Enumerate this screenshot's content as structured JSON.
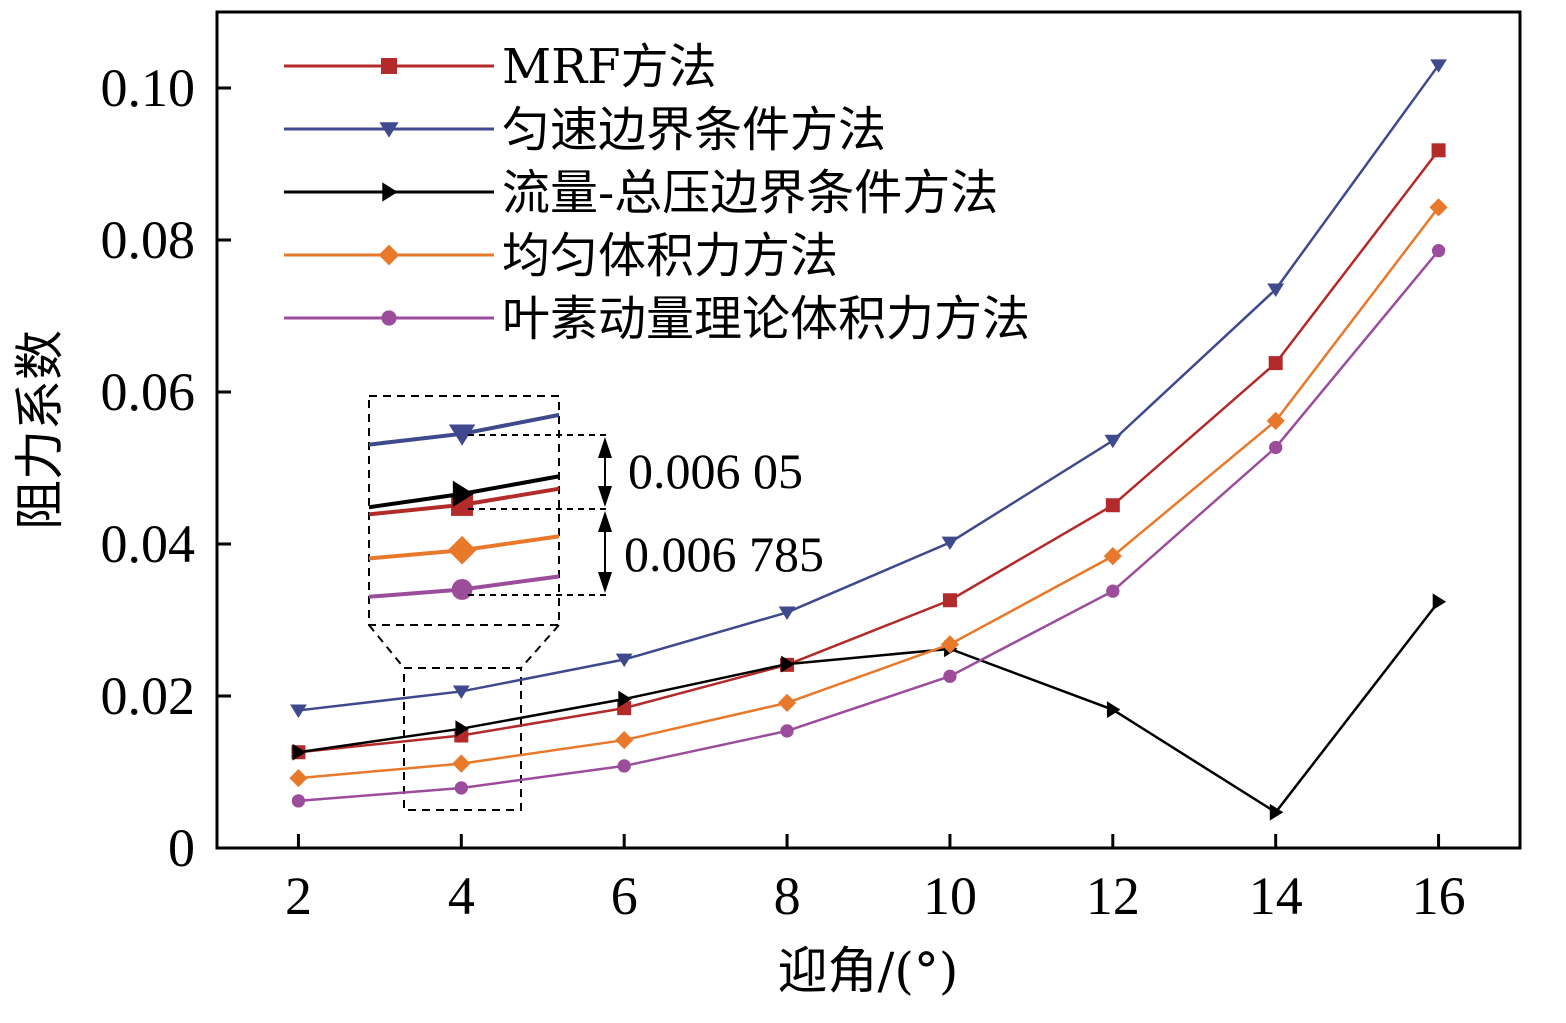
{
  "chart_data": {
    "type": "line",
    "title": "",
    "xlabel": "迎角/(°)",
    "ylabel": "阻力系数",
    "x": [
      2,
      4,
      6,
      8,
      10,
      12,
      14,
      16
    ],
    "xlim": [
      1,
      17
    ],
    "ylim": [
      0,
      0.11
    ],
    "xticks": [
      "2",
      "4",
      "6",
      "8",
      "10",
      "12",
      "14",
      "16"
    ],
    "yticks": [
      {
        "value": 0,
        "label": "0"
      },
      {
        "value": 0.02,
        "label": "0.02"
      },
      {
        "value": 0.04,
        "label": "0.04"
      },
      {
        "value": 0.06,
        "label": "0.06"
      },
      {
        "value": 0.08,
        "label": "0.08"
      },
      {
        "value": 0.1,
        "label": "0.10"
      }
    ],
    "grid": false,
    "legend_position": "top-left",
    "series": [
      {
        "name": "MRF方法",
        "color": "#b22a2a",
        "marker": "square",
        "values": [
          0.0126,
          0.0148,
          0.0184,
          0.0241,
          0.0326,
          0.0451,
          0.0638,
          0.0918
        ]
      },
      {
        "name": "匀速边界条件方法",
        "color": "#3f4a8e",
        "marker": "triangle-down",
        "values": [
          0.0181,
          0.0206,
          0.0248,
          0.031,
          0.0402,
          0.0536,
          0.0735,
          0.103
        ]
      },
      {
        "name": "流量-总压边界条件方法",
        "color": "#000000",
        "marker": "triangle-right",
        "values": [
          0.0126,
          0.0157,
          0.0196,
          0.0242,
          0.0262,
          0.0182,
          0.0047,
          0.0324
        ]
      },
      {
        "name": "均匀体积力方法",
        "color": "#e8782a",
        "marker": "diamond",
        "values": [
          0.0092,
          0.0111,
          0.0142,
          0.0191,
          0.0268,
          0.0384,
          0.0562,
          0.0843
        ]
      },
      {
        "name": "叶素动量理论体积力方法",
        "color": "#9b4d9b",
        "marker": "circle",
        "values": [
          0.0062,
          0.0079,
          0.0108,
          0.0154,
          0.0226,
          0.0338,
          0.0527,
          0.0786
        ]
      }
    ],
    "annotations": [
      "0.006 05",
      "0.006 785"
    ]
  }
}
